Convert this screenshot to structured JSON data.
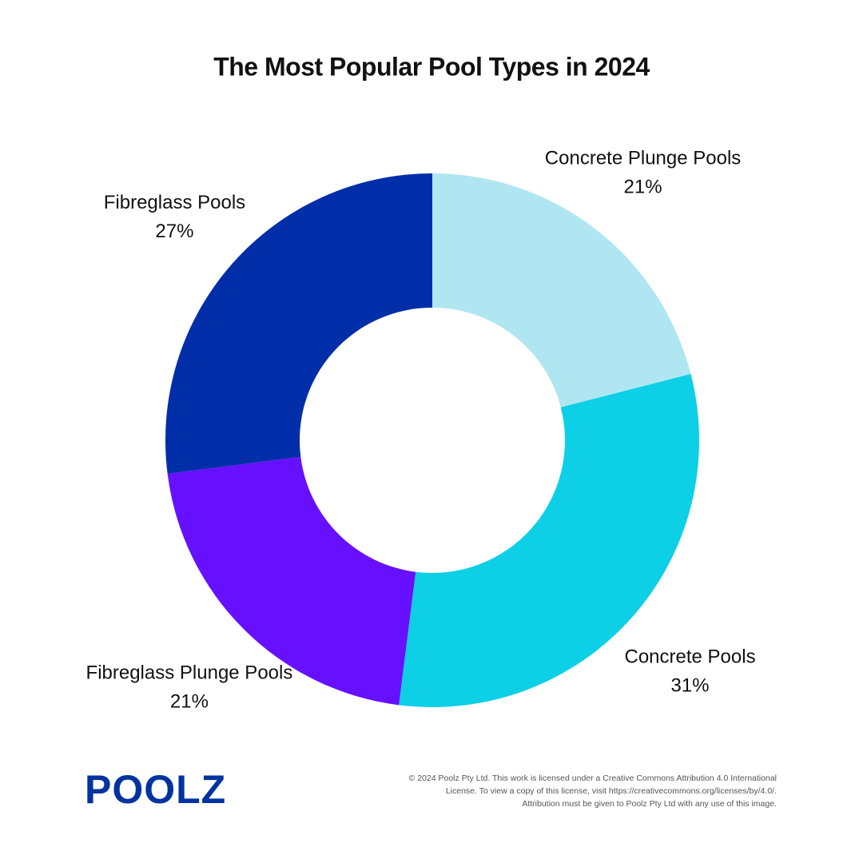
{
  "chart_data": {
    "type": "donut",
    "title": "The Most Popular Pool Types in 2024",
    "categories": [
      "Concrete Plunge Pools",
      "Concrete Pools",
      "Fibreglass Plunge Pools",
      "Fibreglass Pools"
    ],
    "values": [
      21,
      31,
      21,
      27
    ],
    "value_labels": [
      "21%",
      "31%",
      "21%",
      "27%"
    ],
    "colors": [
      "#b0e6f2",
      "#0dcfe6",
      "#6610ff",
      "#002ea8"
    ]
  },
  "logo": "POOLZ",
  "footer": [
    "© 2024 Poolz Pty Ltd. This work is licensed under a Creative Commons Attribution 4.0 International",
    "License. To view a copy of this license, visit https://creativecommons.org/licenses/by/4.0/.",
    "Attribution must be given to Poolz Pty Ltd with any use of this image."
  ]
}
